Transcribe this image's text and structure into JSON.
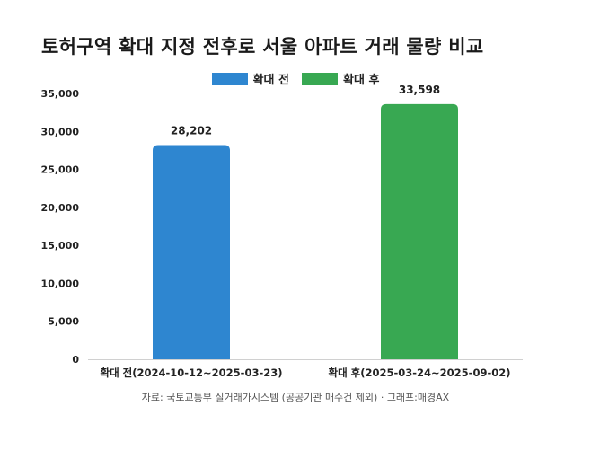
{
  "title": "토허구역 확대 지정 전후로 서울 아파트 거래 물량 비교",
  "source": "자료: 국토교통부 실거래가시스템 (공공기관 매수건 제외) · 그래프:매경AX",
  "legend": [
    {
      "label": "확대 전",
      "color": "#2e86d0"
    },
    {
      "label": "확대 후",
      "color": "#38a852"
    }
  ],
  "chart_data": {
    "type": "bar",
    "categories": [
      "확대 전(2024-10-12~2025-03-23)",
      "확대 후(2025-03-24~2025-09-02)"
    ],
    "series": [
      {
        "name": "확대 전",
        "values": [
          28202,
          null
        ],
        "color": "#2e86d0"
      },
      {
        "name": "확대 후",
        "values": [
          null,
          33598
        ],
        "color": "#38a852"
      }
    ],
    "values": [
      28202,
      33598
    ],
    "data_labels": [
      "28,202",
      "33,598"
    ],
    "ylim": [
      0,
      35000
    ],
    "yticks": [
      0,
      5000,
      10000,
      15000,
      20000,
      25000,
      30000,
      35000
    ],
    "ytick_labels": [
      "0",
      "5,000",
      "10,000",
      "15,000",
      "20,000",
      "25,000",
      "30,000",
      "35,000"
    ],
    "grid": false,
    "legend_position": "top-center"
  }
}
